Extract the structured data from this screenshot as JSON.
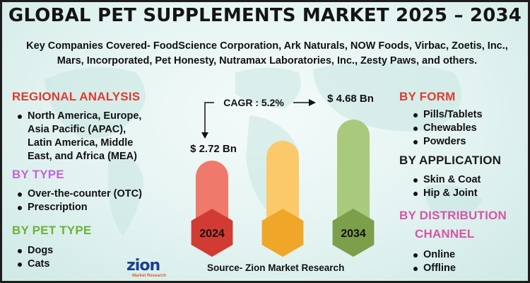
{
  "title": "GLOBAL PET SUPPLEMENTS MARKET 2025 – 2034",
  "companies": {
    "line1": "Key Companies Covered- FoodScience Corporation, Ark Naturals, NOW Foods, Virbac, Zoetis, Inc.,",
    "line2": "Mars, Incorporated, Pet Honesty, Nutramax Laboratories, Inc., Zesty Paws, and others."
  },
  "left": {
    "regional": {
      "heading": "REGIONAL ANALYSIS",
      "items": [
        "North America, Europe,",
        "Asia Pacific (APAC),",
        "Latin America, Middle",
        "East, and Africa (MEA)"
      ]
    },
    "by_type": {
      "heading": "BY TYPE",
      "items": [
        "Over-the-counter (OTC)",
        "Prescription"
      ]
    },
    "by_pet_type": {
      "heading": "BY PET TYPE",
      "items": [
        "Dogs",
        "Cats"
      ]
    }
  },
  "right": {
    "by_form": {
      "heading": "BY FORM",
      "items": [
        "Pills/Tablets",
        "Chewables",
        "Powders"
      ]
    },
    "by_application": {
      "heading": "BY APPLICATION",
      "items": [
        "Skin & Coat",
        "Hip & Joint"
      ]
    },
    "by_distribution": {
      "heading_line1": "BY DISTRIBUTION",
      "heading_line2": "CHANNEL",
      "items": [
        "Online",
        "Offline"
      ]
    }
  },
  "chart_data": {
    "type": "bar",
    "categories": [
      "2024",
      "",
      "2034"
    ],
    "values": [
      2.72,
      null,
      4.68
    ],
    "value_labels": [
      "$ 2.72 Bn",
      "",
      "$ 4.68 Bn"
    ],
    "cagr_label": "CAGR : 5.2%",
    "unit": "USD Billion",
    "colors": [
      "#e4564a",
      "#f7b731",
      "#8db45a"
    ]
  },
  "colors": {
    "regional": "#e03a2f",
    "by_type": "#c663d4",
    "by_pet_type": "#6bb23a",
    "by_form": "#e03a2f",
    "by_application": "#1b1b1b",
    "by_distribution": "#d655a6"
  },
  "source": "Source- Zion Market Research",
  "logo": {
    "name": "zion",
    "sub": "Market Research"
  }
}
